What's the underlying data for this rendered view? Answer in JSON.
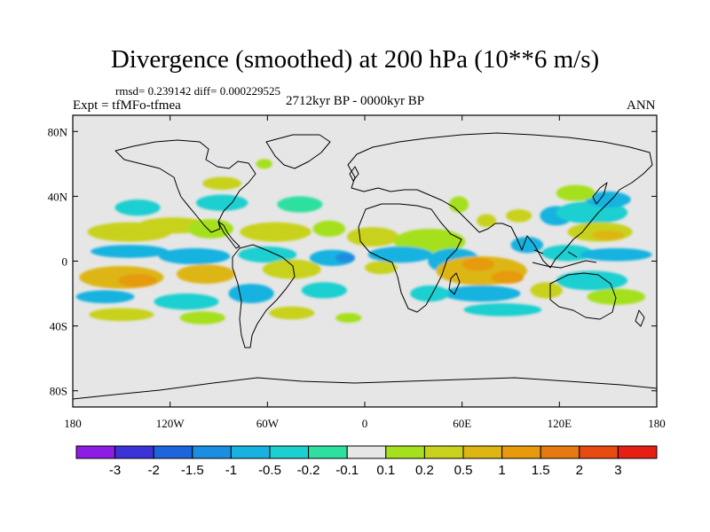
{
  "title": "Divergence (smoothed) at 200 hPa (10**6 m/s)",
  "stats": {
    "rmsd_label": "rmsd=",
    "rmsd": "0.239142",
    "diff_label": "diff=",
    "diff": "0.000229525"
  },
  "experiment": "Expt = tfMFo-tfmea",
  "period": "2712kyr BP - 0000kyr BP",
  "season": "ANN",
  "map": {
    "projection": "cylindrical equidistant",
    "lon_range": [
      -180,
      180
    ],
    "lat_range": [
      -90,
      90
    ],
    "background_color": "#e6e6e6",
    "lat_ticks": [
      {
        "value": 80,
        "label": "80N"
      },
      {
        "value": 40,
        "label": "40N"
      },
      {
        "value": 0,
        "label": "0"
      },
      {
        "value": -40,
        "label": "40S"
      },
      {
        "value": -80,
        "label": "80S"
      }
    ],
    "lon_ticks": [
      {
        "value": -180,
        "label": "180"
      },
      {
        "value": -120,
        "label": "120W"
      },
      {
        "value": -60,
        "label": "60W"
      },
      {
        "value": 0,
        "label": "0"
      },
      {
        "value": 60,
        "label": "60E"
      },
      {
        "value": 120,
        "label": "120E"
      },
      {
        "value": 180,
        "label": "180"
      }
    ]
  },
  "colorbar": {
    "colors": [
      "#8c1ce6",
      "#3c32d8",
      "#1e64dc",
      "#1a8ee0",
      "#17b2e0",
      "#1ccfd0",
      "#2ee0a0",
      "#e6e6e6",
      "#a5e01e",
      "#c8d21c",
      "#ddb614",
      "#e69a0c",
      "#e67810",
      "#e64a10",
      "#e61e14"
    ],
    "labels": [
      "-3",
      "-2",
      "-1.5",
      "-1",
      "-0.5",
      "-0.2",
      "-0.1",
      "0.1",
      "0.2",
      "0.5",
      "1",
      "1.5",
      "2",
      "3"
    ]
  },
  "blobs": [
    {
      "lon": -145,
      "lat": 18,
      "rx": 26,
      "ry": 6,
      "color": "#c8d21c"
    },
    {
      "lon": -118,
      "lat": 22,
      "rx": 22,
      "ry": 5,
      "color": "#c8d21c"
    },
    {
      "lon": -95,
      "lat": 20,
      "rx": 14,
      "ry": 6,
      "color": "#a5e01e"
    },
    {
      "lon": -55,
      "lat": 18,
      "rx": 22,
      "ry": 6,
      "color": "#c8d21c"
    },
    {
      "lon": -22,
      "lat": 20,
      "rx": 10,
      "ry": 5,
      "color": "#a5e01e"
    },
    {
      "lon": -145,
      "lat": 6,
      "rx": 24,
      "ry": 4,
      "color": "#17b2e0"
    },
    {
      "lon": -105,
      "lat": 3,
      "rx": 22,
      "ry": 5,
      "color": "#17b2e0"
    },
    {
      "lon": -60,
      "lat": 4,
      "rx": 18,
      "ry": 5,
      "color": "#1ccfd0"
    },
    {
      "lon": -20,
      "lat": 2,
      "rx": 14,
      "ry": 5,
      "color": "#17b2e0"
    },
    {
      "lon": -12,
      "lat": 2,
      "rx": 6,
      "ry": 3,
      "color": "#1a8ee0"
    },
    {
      "lon": -150,
      "lat": -10,
      "rx": 26,
      "ry": 7,
      "color": "#ddb614"
    },
    {
      "lon": -140,
      "lat": -12,
      "rx": 12,
      "ry": 4,
      "color": "#e69a0c"
    },
    {
      "lon": -98,
      "lat": -8,
      "rx": 18,
      "ry": 6,
      "color": "#ddb614"
    },
    {
      "lon": -45,
      "lat": -5,
      "rx": 18,
      "ry": 6,
      "color": "#c8d21c"
    },
    {
      "lon": -160,
      "lat": -22,
      "rx": 18,
      "ry": 4,
      "color": "#17b2e0"
    },
    {
      "lon": -110,
      "lat": -25,
      "rx": 20,
      "ry": 5,
      "color": "#1ccfd0"
    },
    {
      "lon": -70,
      "lat": -20,
      "rx": 14,
      "ry": 6,
      "color": "#17b2e0"
    },
    {
      "lon": -25,
      "lat": -18,
      "rx": 14,
      "ry": 5,
      "color": "#1ccfd0"
    },
    {
      "lon": -150,
      "lat": -33,
      "rx": 20,
      "ry": 4,
      "color": "#c8d21c"
    },
    {
      "lon": -100,
      "lat": -35,
      "rx": 14,
      "ry": 4,
      "color": "#a5e01e"
    },
    {
      "lon": -45,
      "lat": -32,
      "rx": 14,
      "ry": 4,
      "color": "#c8d21c"
    },
    {
      "lon": -10,
      "lat": -35,
      "rx": 8,
      "ry": 3,
      "color": "#a5e01e"
    },
    {
      "lon": -140,
      "lat": 33,
      "rx": 14,
      "ry": 5,
      "color": "#1ccfd0"
    },
    {
      "lon": -88,
      "lat": 36,
      "rx": 16,
      "ry": 5,
      "color": "#1ccfd0"
    },
    {
      "lon": -40,
      "lat": 35,
      "rx": 14,
      "ry": 5,
      "color": "#2ee0a0"
    },
    {
      "lon": -88,
      "lat": 48,
      "rx": 12,
      "ry": 4,
      "color": "#c8d21c"
    },
    {
      "lon": -62,
      "lat": 60,
      "rx": 5,
      "ry": 3,
      "color": "#a5e01e"
    },
    {
      "lon": 5,
      "lat": 15,
      "rx": 16,
      "ry": 6,
      "color": "#c8d21c"
    },
    {
      "lon": 40,
      "lat": 12,
      "rx": 22,
      "ry": 8,
      "color": "#a5e01e"
    },
    {
      "lon": 22,
      "lat": 4,
      "rx": 20,
      "ry": 5,
      "color": "#17b2e0"
    },
    {
      "lon": 10,
      "lat": -4,
      "rx": 10,
      "ry": 4,
      "color": "#c8d21c"
    },
    {
      "lon": 55,
      "lat": 0,
      "rx": 16,
      "ry": 8,
      "color": "#17b2e0"
    },
    {
      "lon": 72,
      "lat": -6,
      "rx": 28,
      "ry": 9,
      "color": "#ddb614"
    },
    {
      "lon": 70,
      "lat": -2,
      "rx": 10,
      "ry": 4,
      "color": "#e69a0c"
    },
    {
      "lon": 88,
      "lat": -10,
      "rx": 10,
      "ry": 4,
      "color": "#e69a0c"
    },
    {
      "lon": 72,
      "lat": -20,
      "rx": 24,
      "ry": 5,
      "color": "#17b2e0"
    },
    {
      "lon": 40,
      "lat": -20,
      "rx": 12,
      "ry": 5,
      "color": "#1ccfd0"
    },
    {
      "lon": 85,
      "lat": -30,
      "rx": 24,
      "ry": 4,
      "color": "#1ccfd0"
    },
    {
      "lon": 58,
      "lat": 35,
      "rx": 6,
      "ry": 5,
      "color": "#a5e01e"
    },
    {
      "lon": 75,
      "lat": 25,
      "rx": 6,
      "ry": 4,
      "color": "#c8d21c"
    },
    {
      "lon": 95,
      "lat": 28,
      "rx": 8,
      "ry": 4,
      "color": "#c8d21c"
    },
    {
      "lon": 118,
      "lat": 28,
      "rx": 10,
      "ry": 6,
      "color": "#17b2e0"
    },
    {
      "lon": 140,
      "lat": 30,
      "rx": 22,
      "ry": 7,
      "color": "#1ccfd0"
    },
    {
      "lon": 150,
      "lat": 38,
      "rx": 14,
      "ry": 5,
      "color": "#17b2e0"
    },
    {
      "lon": 130,
      "lat": 42,
      "rx": 12,
      "ry": 5,
      "color": "#a5e01e"
    },
    {
      "lon": 145,
      "lat": 18,
      "rx": 20,
      "ry": 6,
      "color": "#c8d21c"
    },
    {
      "lon": 150,
      "lat": 16,
      "rx": 10,
      "ry": 3,
      "color": "#ddb614"
    },
    {
      "lon": 100,
      "lat": 10,
      "rx": 10,
      "ry": 5,
      "color": "#17b2e0"
    },
    {
      "lon": 125,
      "lat": 5,
      "rx": 16,
      "ry": 5,
      "color": "#1ccfd0"
    },
    {
      "lon": 155,
      "lat": 4,
      "rx": 22,
      "ry": 4,
      "color": "#17b2e0"
    },
    {
      "lon": 140,
      "lat": -12,
      "rx": 22,
      "ry": 6,
      "color": "#1ccfd0"
    },
    {
      "lon": 112,
      "lat": -18,
      "rx": 10,
      "ry": 5,
      "color": "#c8d21c"
    },
    {
      "lon": 155,
      "lat": -22,
      "rx": 18,
      "ry": 5,
      "color": "#a5e01e"
    }
  ]
}
